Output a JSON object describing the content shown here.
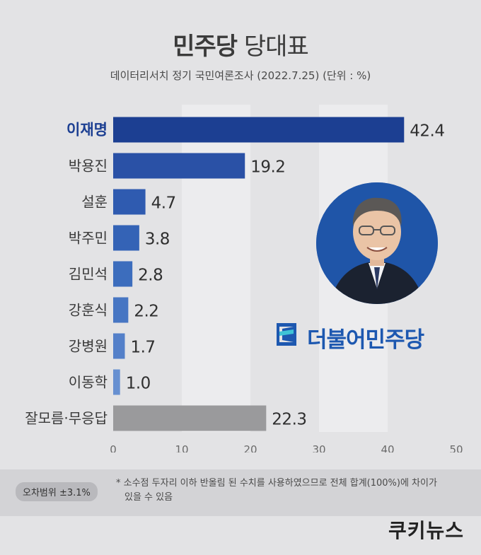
{
  "title_main": "민주당",
  "title_rest": "당대표",
  "subtitle": "데이터리서치 정기 국민여론조사 (2022.7.25)  (단위 : %)",
  "chart_data": {
    "type": "bar",
    "orientation": "horizontal",
    "categories": [
      "이재명",
      "박용진",
      "설훈",
      "박주민",
      "김민석",
      "강훈식",
      "강병원",
      "이동학",
      "잘모름·무응답"
    ],
    "values": [
      42.4,
      19.2,
      4.7,
      3.8,
      2.8,
      2.2,
      1.7,
      1.0,
      22.3
    ],
    "value_labels": [
      "42.4",
      "19.2",
      "4.7",
      "3.8",
      "2.8",
      "2.2",
      "1.7",
      "1.0",
      "22.3"
    ],
    "xlim": [
      0,
      50
    ],
    "xticks": [
      0,
      10,
      20,
      30,
      40,
      50
    ],
    "grid": true,
    "colors": [
      "#1c3f92",
      "#2a51a6",
      "#2f5bb0",
      "#3463b6",
      "#3c6dbd",
      "#4776c3",
      "#5480c9",
      "#6790d1",
      "#9a9a9c"
    ]
  },
  "footer": {
    "margin_of_error": "오차범위 ±3.1%",
    "note_line1": "* 소수점 두자리 이하 반올림 된 수치를 사용하였으므로 전체 합계(100%)에 차이가",
    "note_line2": "있을 수 있음"
  },
  "party_logo_text": "더불어민주당",
  "brand": "쿠키뉴스"
}
